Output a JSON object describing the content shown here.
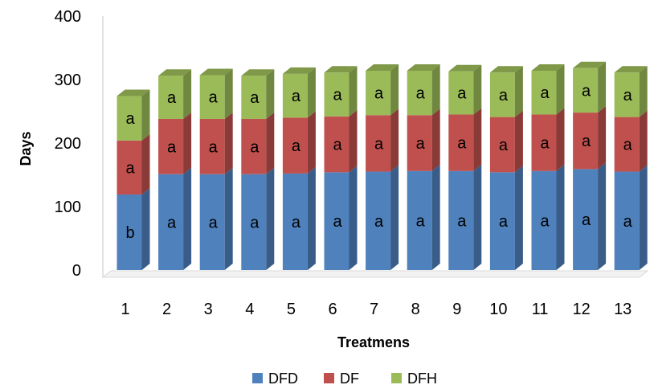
{
  "chart_data": {
    "type": "bar",
    "stacked": true,
    "style": "3d",
    "categories": [
      "1",
      "2",
      "3",
      "4",
      "5",
      "6",
      "7",
      "8",
      "9",
      "10",
      "11",
      "12",
      "13"
    ],
    "series": [
      {
        "name": "DFD",
        "color": "#4f81bd",
        "values": [
          119,
          151,
          151,
          151,
          152,
          154,
          155,
          156,
          156,
          154,
          156,
          159,
          155
        ],
        "labels": [
          "b",
          "a",
          "a",
          "a",
          "a",
          "a",
          "a",
          "a",
          "a",
          "a",
          "a",
          "a",
          "a"
        ]
      },
      {
        "name": "DF",
        "color": "#c0504d",
        "values": [
          85,
          87,
          87,
          87,
          88,
          88,
          89,
          88,
          89,
          87,
          89,
          89,
          86
        ],
        "labels": [
          "a",
          "a",
          "a",
          "a",
          "a",
          "a",
          "a",
          "a",
          "a",
          "a",
          "a",
          "a",
          "a"
        ]
      },
      {
        "name": "DFH",
        "color": "#9bbb59",
        "values": [
          70,
          68,
          69,
          68,
          69,
          69,
          70,
          70,
          68,
          70,
          69,
          70,
          70
        ],
        "labels": [
          "a",
          "a",
          "a",
          "a",
          "a",
          "a",
          "a",
          "a",
          "a",
          "a",
          "a",
          "a",
          "a"
        ]
      }
    ],
    "xlabel": "Treatmens",
    "ylabel": "Days",
    "ylim": [
      0,
      400
    ],
    "yticks": [
      0,
      100,
      200,
      300,
      400
    ],
    "grid": false,
    "legend": "bottom"
  }
}
